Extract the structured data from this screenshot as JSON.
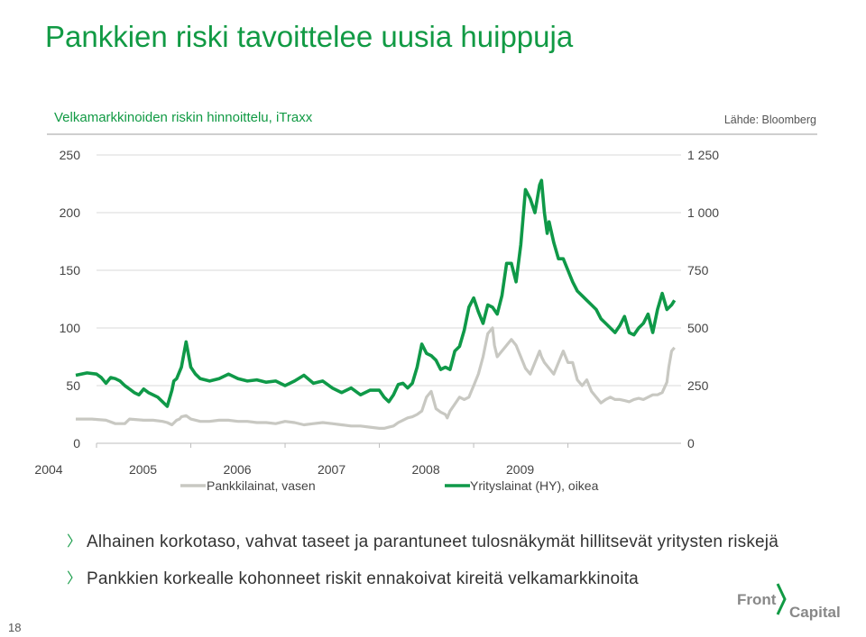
{
  "title": "Pankkien riski tavoittelee uusia huippuja",
  "subtitle": "Velkamarkkinoiden riskin hinnoittelu, iTraxx",
  "source": "Lähde: Bloomberg",
  "bullets": [
    "Alhainen korkotaso, vahvat taseet ja parantuneet tulosnäkymät hillitsevät yritysten riskejä",
    "Pankkien korkealle kohonneet riskit ennakoivat kireitä velkamarkkinoita"
  ],
  "page_number": "18",
  "logo": {
    "line1": "Front",
    "line2": "Capital"
  },
  "colors": {
    "title": "#119a44",
    "series_bank": "#c8c8c2",
    "series_hy": "#0f9948"
  },
  "chart_data": {
    "type": "line",
    "xlim": [
      2004,
      2010.2
    ],
    "x_ticks": [
      "2004",
      "2005",
      "2006",
      "2007",
      "2008",
      "2009"
    ],
    "ylim_left": [
      0,
      250
    ],
    "ylim_right": [
      0,
      1250
    ],
    "y_ticks_left": [
      "0",
      "50",
      "100",
      "150",
      "200",
      "250"
    ],
    "y_ticks_right": [
      "0",
      "250",
      "500",
      "750",
      "1 000",
      "1 250"
    ],
    "grid": true,
    "legend": "bottom",
    "series": [
      {
        "name": "Pankkilainat, vasen",
        "axis": "left",
        "x": [
          2003.78,
          2003.95,
          2004.1,
          2004.2,
          2004.3,
          2004.35,
          2004.5,
          2004.6,
          2004.7,
          2004.75,
          2004.8,
          2004.85,
          2004.88,
          2004.9,
          2004.95,
          2005.0,
          2005.1,
          2005.2,
          2005.3,
          2005.4,
          2005.5,
          2005.6,
          2005.7,
          2005.8,
          2005.9,
          2006.0,
          2006.1,
          2006.2,
          2006.3,
          2006.4,
          2006.5,
          2006.6,
          2006.7,
          2006.8,
          2006.9,
          2007.0,
          2007.05,
          2007.1,
          2007.15,
          2007.2,
          2007.25,
          2007.3,
          2007.35,
          2007.4,
          2007.45,
          2007.5,
          2007.55,
          2007.6,
          2007.65,
          2007.7,
          2007.72,
          2007.75,
          2007.8,
          2007.85,
          2007.9,
          2007.95,
          2008.0,
          2008.05,
          2008.1,
          2008.15,
          2008.2,
          2008.22,
          2008.25,
          2008.3,
          2008.35,
          2008.4,
          2008.45,
          2008.5,
          2008.55,
          2008.6,
          2008.65,
          2008.7,
          2008.72,
          2008.75,
          2008.8,
          2008.85,
          2008.9,
          2008.95,
          2009.0,
          2009.05,
          2009.1,
          2009.15,
          2009.2,
          2009.25,
          2009.3,
          2009.35,
          2009.4,
          2009.45,
          2009.5,
          2009.55,
          2009.6,
          2009.65,
          2009.7,
          2009.75,
          2009.8,
          2009.85,
          2009.9,
          2009.95,
          2010.0,
          2010.05,
          2010.07,
          2010.1,
          2010.13
        ],
        "y": [
          21,
          21,
          20,
          17,
          17,
          21,
          20,
          20,
          19,
          18,
          16,
          20,
          21,
          23,
          24,
          21,
          19,
          19,
          20,
          20,
          19,
          19,
          18,
          18,
          17,
          19,
          18,
          16,
          17,
          18,
          17,
          16,
          15,
          15,
          14,
          13,
          13,
          14,
          15,
          18,
          20,
          22,
          23,
          25,
          28,
          40,
          45,
          30,
          27,
          25,
          22,
          28,
          34,
          40,
          38,
          40,
          50,
          60,
          75,
          95,
          100,
          85,
          75,
          80,
          85,
          90,
          85,
          75,
          65,
          60,
          70,
          80,
          75,
          70,
          65,
          60,
          70,
          80,
          70,
          70,
          55,
          50,
          55,
          45,
          40,
          35,
          38,
          40,
          38,
          38,
          37,
          36,
          38,
          39,
          38,
          40,
          42,
          42,
          44,
          53,
          66,
          80,
          83
        ]
      },
      {
        "name": "Yrityslainat (HY), oikea",
        "axis": "right",
        "x": [
          2003.78,
          2003.9,
          2004.0,
          2004.05,
          2004.1,
          2004.15,
          2004.2,
          2004.25,
          2004.3,
          2004.35,
          2004.4,
          2004.45,
          2004.5,
          2004.55,
          2004.6,
          2004.65,
          2004.7,
          2004.75,
          2004.8,
          2004.82,
          2004.85,
          2004.9,
          2004.95,
          2005.0,
          2005.05,
          2005.1,
          2005.2,
          2005.3,
          2005.4,
          2005.5,
          2005.6,
          2005.7,
          2005.8,
          2005.9,
          2006.0,
          2006.1,
          2006.2,
          2006.3,
          2006.4,
          2006.5,
          2006.6,
          2006.7,
          2006.8,
          2006.9,
          2007.0,
          2007.05,
          2007.1,
          2007.15,
          2007.2,
          2007.25,
          2007.3,
          2007.35,
          2007.4,
          2007.45,
          2007.5,
          2007.55,
          2007.6,
          2007.65,
          2007.7,
          2007.75,
          2007.8,
          2007.85,
          2007.9,
          2007.95,
          2008.0,
          2008.05,
          2008.1,
          2008.15,
          2008.2,
          2008.25,
          2008.3,
          2008.35,
          2008.4,
          2008.45,
          2008.5,
          2008.55,
          2008.6,
          2008.65,
          2008.7,
          2008.72,
          2008.75,
          2008.78,
          2008.8,
          2008.85,
          2008.9,
          2008.95,
          2009.0,
          2009.05,
          2009.1,
          2009.15,
          2009.2,
          2009.25,
          2009.3,
          2009.35,
          2009.4,
          2009.45,
          2009.5,
          2009.55,
          2009.6,
          2009.65,
          2009.7,
          2009.75,
          2009.8,
          2009.85,
          2009.9,
          2009.95,
          2010.0,
          2010.05,
          2010.1,
          2010.13
        ],
        "y": [
          295,
          305,
          300,
          285,
          260,
          285,
          280,
          270,
          250,
          235,
          220,
          210,
          235,
          220,
          210,
          200,
          180,
          160,
          230,
          270,
          280,
          330,
          440,
          330,
          300,
          280,
          270,
          280,
          300,
          280,
          270,
          275,
          265,
          270,
          250,
          270,
          295,
          260,
          270,
          240,
          220,
          240,
          210,
          230,
          230,
          200,
          180,
          210,
          255,
          260,
          240,
          260,
          330,
          430,
          390,
          380,
          360,
          320,
          330,
          320,
          400,
          420,
          490,
          590,
          630,
          570,
          520,
          600,
          590,
          560,
          640,
          780,
          780,
          700,
          860,
          1100,
          1060,
          1000,
          1120,
          1140,
          1000,
          910,
          960,
          870,
          800,
          800,
          750,
          700,
          660,
          640,
          620,
          600,
          580,
          540,
          520,
          500,
          480,
          510,
          550,
          480,
          470,
          500,
          520,
          560,
          480,
          580,
          650,
          580,
          600,
          620
        ]
      }
    ]
  }
}
